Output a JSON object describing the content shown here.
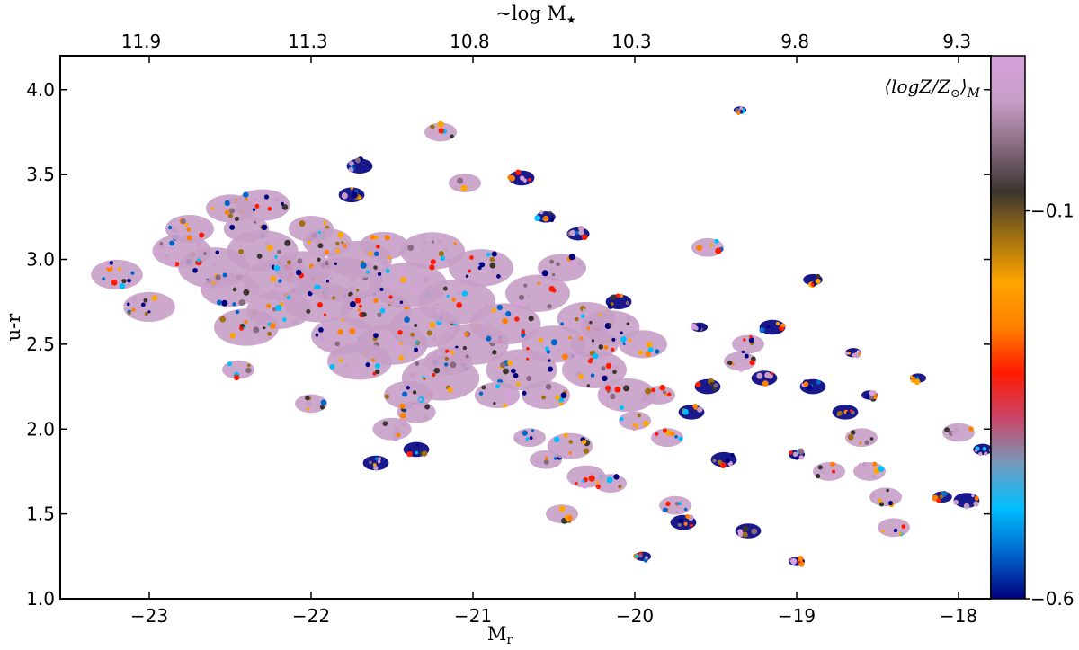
{
  "chart_data": {
    "type": "scatter",
    "xlabel": "M",
    "xlabel_sub": "r",
    "ylabel": "u-r",
    "top_xlabel": "~log M",
    "top_xlabel_sub": "★",
    "annotation": "⟨logZ/Z",
    "annotation_sub_sun": "⊙",
    "annotation_close": "⟩",
    "annotation_sub": "M",
    "xlim": [
      -23.55,
      -17.8
    ],
    "ylim": [
      1.0,
      4.2
    ],
    "x_ticks": [
      {
        "value": -23,
        "label": "−23"
      },
      {
        "value": -22,
        "label": "−22"
      },
      {
        "value": -21,
        "label": "−21"
      },
      {
        "value": -20,
        "label": "−20"
      },
      {
        "value": -19,
        "label": "−19"
      },
      {
        "value": -18,
        "label": "−18"
      }
    ],
    "y_ticks": [
      {
        "value": 1.0,
        "label": "1.0"
      },
      {
        "value": 1.5,
        "label": "1.5"
      },
      {
        "value": 2.0,
        "label": "2.0"
      },
      {
        "value": 2.5,
        "label": "2.5"
      },
      {
        "value": 3.0,
        "label": "3.0"
      },
      {
        "value": 3.5,
        "label": "3.5"
      },
      {
        "value": 4.0,
        "label": "4.0"
      }
    ],
    "top_ticks": [
      {
        "value": -23.05,
        "label": "11.9"
      },
      {
        "value": -22.02,
        "label": "11.3"
      },
      {
        "value": -21.02,
        "label": "10.8"
      },
      {
        "value": -20.02,
        "label": "10.3"
      },
      {
        "value": -19.01,
        "label": "9.8"
      },
      {
        "value": -18.01,
        "label": "9.3"
      }
    ],
    "colorbar": {
      "range": [
        -0.6,
        0.1
      ],
      "ticks": [
        {
          "value": -0.6,
          "label": "−0.6"
        },
        {
          "value": -0.1,
          "label": "−0.1"
        }
      ],
      "stops": [
        "#000080",
        "#0066cc",
        "#00bfff",
        "#7799bb",
        "#cc4466",
        "#ff1a00",
        "#ff8000",
        "#ffa500",
        "#a07010",
        "#3a3530",
        "#886a80",
        "#c79ec7",
        "#d8a0dc"
      ]
    },
    "points": [
      [
        -23.2,
        2.91,
        0.16
      ],
      [
        -23.0,
        2.72,
        0.16
      ],
      [
        -22.8,
        3.05,
        0.18
      ],
      [
        -22.75,
        3.18,
        0.15
      ],
      [
        -22.6,
        2.95,
        0.22
      ],
      [
        -22.5,
        2.82,
        0.18
      ],
      [
        -22.5,
        3.3,
        0.15
      ],
      [
        -22.4,
        3.18,
        0.14
      ],
      [
        -22.3,
        3.32,
        0.17
      ],
      [
        -22.3,
        3.05,
        0.22
      ],
      [
        -22.2,
        2.88,
        0.22
      ],
      [
        -22.4,
        2.6,
        0.2
      ],
      [
        -22.2,
        2.7,
        0.2
      ],
      [
        -22.05,
        2.95,
        0.18
      ],
      [
        -22.0,
        3.18,
        0.14
      ],
      [
        -21.95,
        2.75,
        0.22
      ],
      [
        -21.9,
        3.1,
        0.15
      ],
      [
        -21.8,
        2.55,
        0.2
      ],
      [
        -21.8,
        2.88,
        0.24
      ],
      [
        -21.7,
        3.0,
        0.2
      ],
      [
        -21.6,
        2.7,
        0.22
      ],
      [
        -21.5,
        2.5,
        0.22
      ],
      [
        -21.55,
        3.08,
        0.15
      ],
      [
        -21.4,
        2.85,
        0.24
      ],
      [
        -21.3,
        2.6,
        0.22
      ],
      [
        -21.25,
        3.05,
        0.2
      ],
      [
        -21.2,
        2.3,
        0.24
      ],
      [
        -21.1,
        2.75,
        0.24
      ],
      [
        -21.0,
        2.5,
        0.22
      ],
      [
        -20.95,
        2.95,
        0.2
      ],
      [
        -20.8,
        2.62,
        0.22
      ],
      [
        -20.7,
        2.35,
        0.22
      ],
      [
        -20.6,
        2.8,
        0.2
      ],
      [
        -20.5,
        2.5,
        0.2
      ],
      [
        -20.45,
        2.95,
        0.15
      ],
      [
        -20.3,
        2.65,
        0.18
      ],
      [
        -20.25,
        2.35,
        0.2
      ],
      [
        -20.15,
        2.6,
        0.18
      ],
      [
        -20.05,
        2.2,
        0.18
      ],
      [
        -19.95,
        2.5,
        0.15
      ],
      [
        -22.45,
        2.35,
        0.1
      ],
      [
        -22.0,
        2.15,
        0.1
      ],
      [
        -21.7,
        2.4,
        0.2
      ],
      [
        -21.5,
        2.0,
        0.12
      ],
      [
        -21.35,
        2.1,
        0.12
      ],
      [
        -21.6,
        1.8,
        0.08
      ],
      [
        -21.35,
        1.88,
        0.08
      ],
      [
        -21.2,
        3.75,
        0.1
      ],
      [
        -21.05,
        3.45,
        0.1
      ],
      [
        -21.7,
        3.55,
        0.08
      ],
      [
        -20.7,
        3.48,
        0.08
      ],
      [
        -21.75,
        3.38,
        0.08
      ],
      [
        -20.55,
        3.25,
        0.06
      ],
      [
        -20.35,
        3.15,
        0.07
      ],
      [
        -20.85,
        2.2,
        0.14
      ],
      [
        -20.65,
        1.95,
        0.1
      ],
      [
        -20.55,
        1.82,
        0.1
      ],
      [
        -20.4,
        1.9,
        0.14
      ],
      [
        -20.3,
        1.72,
        0.12
      ],
      [
        -20.15,
        1.68,
        0.1
      ],
      [
        -20.45,
        1.5,
        0.1
      ],
      [
        -20.0,
        2.05,
        0.1
      ],
      [
        -19.85,
        2.2,
        0.1
      ],
      [
        -19.8,
        1.95,
        0.1
      ],
      [
        -19.75,
        1.55,
        0.1
      ],
      [
        -19.7,
        1.45,
        0.08
      ],
      [
        -19.65,
        2.1,
        0.08
      ],
      [
        -19.55,
        2.25,
        0.08
      ],
      [
        -19.55,
        3.07,
        0.1
      ],
      [
        -19.45,
        1.82,
        0.08
      ],
      [
        -19.35,
        2.4,
        0.1
      ],
      [
        -19.3,
        2.5,
        0.1
      ],
      [
        -19.3,
        1.4,
        0.08
      ],
      [
        -19.2,
        2.3,
        0.08
      ],
      [
        -19.15,
        2.6,
        0.08
      ],
      [
        -19.0,
        1.22,
        0.05
      ],
      [
        -18.9,
        2.88,
        0.06
      ],
      [
        -18.9,
        2.25,
        0.08
      ],
      [
        -18.8,
        1.75,
        0.1
      ],
      [
        -18.7,
        2.1,
        0.08
      ],
      [
        -18.6,
        1.95,
        0.1
      ],
      [
        -18.55,
        1.75,
        0.1
      ],
      [
        -18.45,
        1.6,
        0.1
      ],
      [
        -18.4,
        1.42,
        0.1
      ],
      [
        -18.25,
        2.3,
        0.05
      ],
      [
        -18.1,
        1.6,
        0.06
      ],
      [
        -18.0,
        1.98,
        0.1
      ],
      [
        -17.95,
        1.58,
        0.08
      ],
      [
        -17.85,
        1.88,
        0.06
      ],
      [
        -19.35,
        3.88,
        0.04
      ],
      [
        -19.95,
        1.25,
        0.05
      ],
      [
        -19.0,
        1.85,
        0.05
      ],
      [
        -18.55,
        2.2,
        0.05
      ],
      [
        -18.65,
        2.45,
        0.05
      ],
      [
        -19.6,
        2.6,
        0.05
      ],
      [
        -20.1,
        2.75,
        0.08
      ],
      [
        -20.25,
        2.5,
        0.15
      ],
      [
        -20.55,
        2.2,
        0.15
      ],
      [
        -21.15,
        2.4,
        0.15
      ],
      [
        -21.4,
        2.2,
        0.15
      ]
    ]
  }
}
